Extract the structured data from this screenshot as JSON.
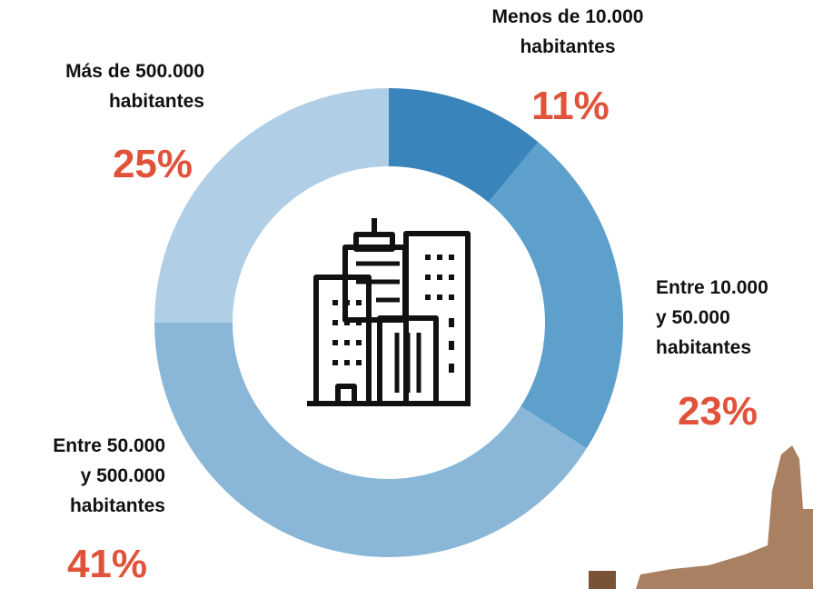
{
  "chart_data": {
    "type": "donut",
    "categories": [
      "Menos de 10.000\nhabitantes",
      "Entre 10.000\ny 50.000\nhabitantes",
      "Entre 50.000\ny 500.000\nhabitantes",
      "Más de 500.000\nhabitantes"
    ],
    "values": [
      11,
      23,
      41,
      25
    ],
    "value_labels": [
      "11%",
      "23%",
      "41%",
      "25%"
    ],
    "colors": [
      "#3884bb",
      "#5ea0cc",
      "#8ab7d8",
      "#b0cfe6"
    ],
    "label_color": "#e0533a"
  }
}
